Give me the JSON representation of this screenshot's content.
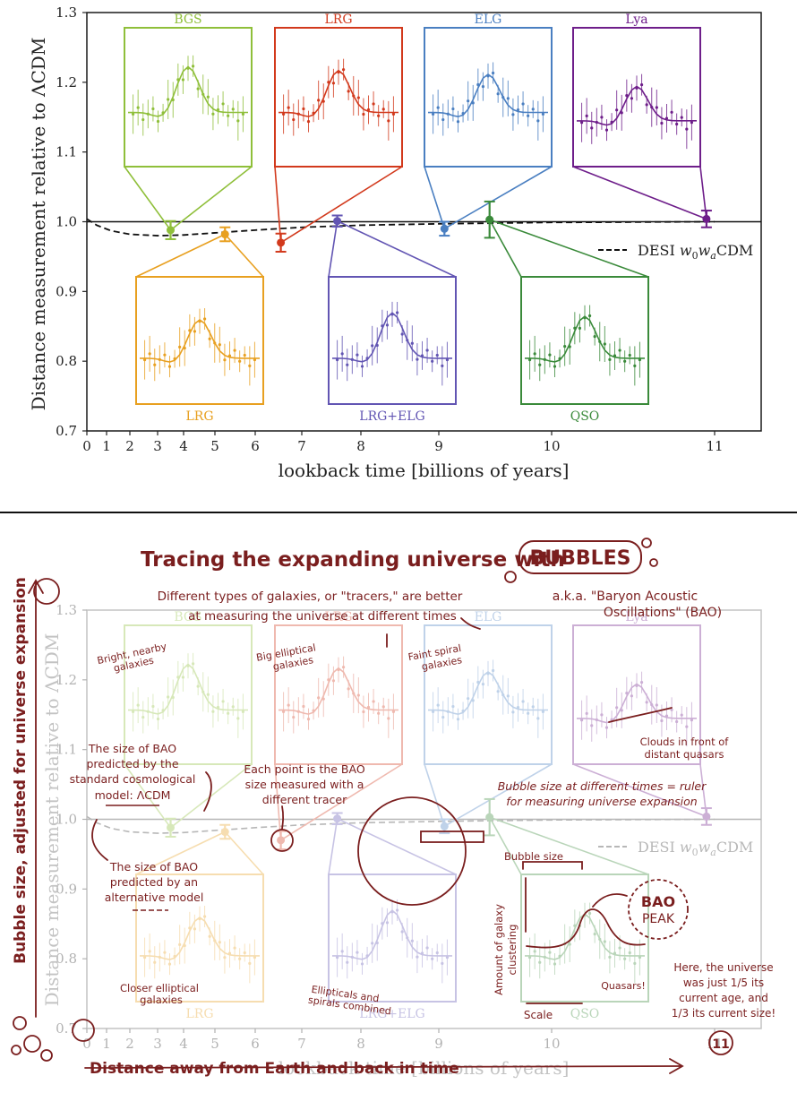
{
  "chart_data": [
    {
      "type": "scatter",
      "ylabel": "Distance measurement relative to ΛCDM",
      "xlabel": "lookback time [billions of years]",
      "ylim": [
        0.7,
        1.3
      ],
      "yticks": [
        "0.7",
        "0.8",
        "0.9",
        "1.0",
        "1.1",
        "1.2",
        "1.3"
      ],
      "xticks": [
        "0",
        "1",
        "2",
        "3",
        "4",
        "5",
        "6",
        "7",
        "8",
        "9",
        "10",
        "11"
      ],
      "xtick_values": [
        0,
        1,
        2,
        3,
        4,
        5,
        6,
        7,
        8,
        9,
        10,
        11
      ],
      "reference_line": 1.0,
      "model_curve": {
        "name": "DESI w0waCDM",
        "points": [
          [
            0,
            1.004
          ],
          [
            0.5,
            0.995
          ],
          [
            1.2,
            0.987
          ],
          [
            2,
            0.982
          ],
          [
            3,
            0.98
          ],
          [
            4,
            0.981
          ],
          [
            5,
            0.984
          ],
          [
            6,
            0.988
          ],
          [
            7,
            0.992
          ],
          [
            8,
            0.995
          ],
          [
            9,
            0.997
          ],
          [
            10,
            0.999
          ],
          [
            11,
            1.0
          ],
          [
            11.5,
            1.0
          ]
        ]
      },
      "points": [
        {
          "tracer": "BGS",
          "x": 3.5,
          "y": 0.988,
          "err": 0.013,
          "color": "#8fbf3a"
        },
        {
          "tracer": "LRG",
          "x": 5.25,
          "y": 0.982,
          "err": 0.01,
          "color": "#e8a020"
        },
        {
          "tracer": "LRG",
          "x": 6.55,
          "y": 0.97,
          "err": 0.013,
          "color": "#d2391c"
        },
        {
          "tracer": "LRG+ELG",
          "x": 7.6,
          "y": 1.001,
          "err": 0.008,
          "color": "#6255b3"
        },
        {
          "tracer": "ELG",
          "x": 9.05,
          "y": 0.99,
          "err": 0.01,
          "color": "#4a7fc1"
        },
        {
          "tracer": "QSO",
          "x": 9.45,
          "y": 1.003,
          "err": 0.026,
          "color": "#3a8a3a"
        },
        {
          "tracer": "Lya",
          "x": 10.95,
          "y": 1.004,
          "err": 0.012,
          "color": "#6e1e8a"
        }
      ],
      "insets": [
        {
          "label": "BGS",
          "color": "#8fbf3a",
          "peak": 0.6,
          "base": 0.45
        },
        {
          "label": "LRG",
          "color": "#d2391c",
          "peak": 0.55,
          "base": 0.45
        },
        {
          "label": "ELG",
          "color": "#4a7fc1",
          "peak": 0.5,
          "base": 0.45
        },
        {
          "label": "Lya",
          "color": "#6e1e8a",
          "peak": 0.45,
          "base": 0.35
        },
        {
          "label": "LRG",
          "color": "#e8a020",
          "peak": 0.55,
          "base": 0.4
        },
        {
          "label": "LRG+ELG",
          "color": "#6255b3",
          "peak": 0.65,
          "base": 0.4
        },
        {
          "label": "QSO",
          "color": "#3a8a3a",
          "peak": 0.6,
          "base": 0.4
        }
      ],
      "legend": {
        "label": "DESI w0waCDM",
        "position": "right"
      }
    },
    {
      "type": "scatter",
      "title": "Tracing the expanding universe with BUBBLES",
      "ylabel": "Bubble size, adjusted for universe expansion",
      "xlabel": "Distance away from Earth and back in time",
      "note": "annotated version of the same chart"
    }
  ],
  "top": {
    "ylabel_main": "Distance measurement relative to ",
    "ylabel_symbol": "ΛCDM",
    "xlabel": "lookback time [billions of years]",
    "legend_prefix": "DESI ",
    "legend_w0": "w",
    "legend_w0sub": "0",
    "legend_wa": "w",
    "legend_wasub": "a",
    "legend_suffix": "CDM"
  },
  "bottom": {
    "title_prefix": "Tracing the expanding universe with",
    "title_bubbles": "BUBBLES",
    "bao_aka_1": "a.k.a. \"Baryon Acoustic",
    "bao_aka_2": "Oscillations\" (BAO)",
    "tracers_note_1": "Different types of galaxies, or \"tracers,\" are better",
    "tracers_note_2": "at measuring the universe at different times",
    "bright_1": "Bright, nearby",
    "bright_2": "galaxies",
    "bigell_1": "Big elliptical",
    "bigell_2": "galaxies",
    "faint_1": "Faint spiral",
    "faint_2": "galaxies",
    "clouds_1": "Clouds in front of",
    "clouds_2": "distant quasars",
    "lcdm_1": "The size of BAO",
    "lcdm_2": "predicted by the",
    "lcdm_3": "standard cosmological",
    "lcdm_4": "model: ΛCDM",
    "each_1": "Each point is the BAO",
    "each_2": "size measured with a",
    "each_3": "different tracer",
    "ruler_1": "Bubble size at different times = ruler",
    "ruler_2": "for measuring universe expansion",
    "alt_1": "The size of BAO",
    "alt_2": "predicted by an",
    "alt_3": "alternative model",
    "bubble_size": "Bubble size",
    "clustering_1": "Amount of galaxy",
    "clustering_2": "clustering",
    "bao_1": "BAO",
    "bao_2": "PEAK",
    "quasars": "Quasars!",
    "scale": "Scale",
    "closer_1": "Closer elliptical",
    "closer_2": "galaxies",
    "ellspiral_1": "Ellipticals and",
    "ellspiral_2": "spirals combined",
    "universe_1": "Here, the universe",
    "universe_2": "was just 1/5 its",
    "universe_3": "current age, and",
    "universe_4": "1/3 its current size!",
    "yaxis": "Bubble size, adjusted for universe expansion",
    "xaxis": "Distance away from Earth and back in time",
    "eleven": "11"
  },
  "colors": {
    "ink": "#7a1e1e",
    "axis": "#1a1a1a"
  }
}
